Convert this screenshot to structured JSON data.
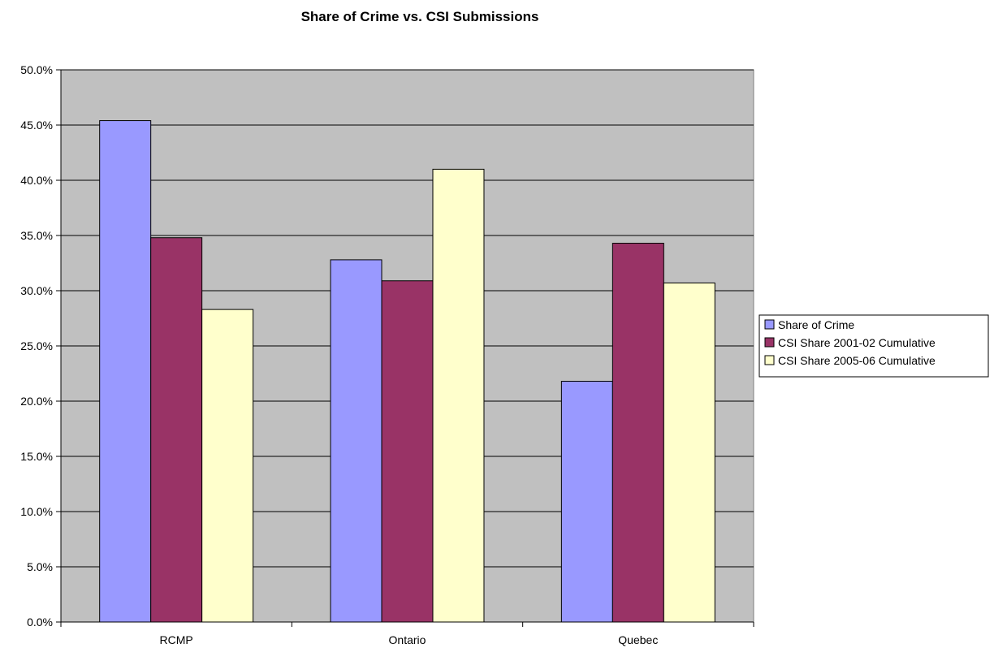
{
  "chart_data": {
    "type": "bar",
    "title": "Share of Crime vs. CSI Submissions",
    "xlabel": "",
    "ylabel": "",
    "categories": [
      "RCMP",
      "Ontario",
      "Quebec"
    ],
    "series": [
      {
        "name": "Share of Crime",
        "values": [
          45.4,
          32.8,
          21.8
        ],
        "color": "#9999ff"
      },
      {
        "name": "CSI Share 2001-02 Cumulative",
        "values": [
          34.8,
          30.9,
          34.3
        ],
        "color": "#993366"
      },
      {
        "name": "CSI Share 2005-06 Cumulative",
        "values": [
          28.3,
          41.0,
          30.7
        ],
        "color": "#ffffcc"
      }
    ],
    "ylim": [
      0,
      50
    ],
    "yticks": [
      "0.0%",
      "5.0%",
      "10.0%",
      "15.0%",
      "20.0%",
      "25.0%",
      "30.0%",
      "35.0%",
      "40.0%",
      "45.0%",
      "50.0%"
    ],
    "grid": true,
    "legend_position": "right",
    "plot_background": "#c0c0c0"
  }
}
